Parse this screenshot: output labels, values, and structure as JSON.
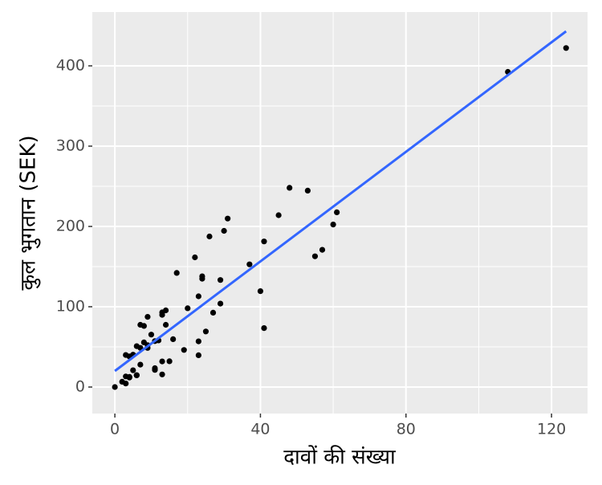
{
  "chart_data": {
    "type": "scatter",
    "x_label": "दावों की संख्या",
    "y_label": "कुल भुगतान (SEK)",
    "x": [
      108,
      19,
      13,
      124,
      40,
      57,
      23,
      14,
      45,
      10,
      5,
      48,
      11,
      23,
      7,
      2,
      24,
      6,
      3,
      23,
      6,
      9,
      9,
      3,
      29,
      7,
      4,
      20,
      7,
      4,
      0,
      25,
      6,
      5,
      22,
      11,
      61,
      12,
      4,
      16,
      13,
      60,
      41,
      37,
      55,
      41,
      11,
      27,
      8,
      3,
      17,
      13,
      13,
      15,
      8,
      29,
      30,
      24,
      9,
      31,
      14,
      53,
      26
    ],
    "y": [
      392.5,
      46.2,
      15.7,
      422.2,
      119.4,
      170.9,
      56.9,
      77.5,
      214,
      65.3,
      20.9,
      248.1,
      23.5,
      39.6,
      48.8,
      6.6,
      134.9,
      50.9,
      4.4,
      113,
      14.8,
      48.7,
      52.1,
      13.2,
      103.9,
      77.5,
      11.8,
      98.1,
      27.9,
      38.1,
      0,
      69.2,
      14.6,
      40.3,
      161.5,
      57.2,
      217.6,
      58.1,
      12.6,
      59.6,
      89.9,
      202.4,
      181.3,
      152.8,
      162.8,
      73.4,
      21.3,
      92.6,
      76.1,
      39.9,
      142.1,
      93,
      31.9,
      32.1,
      55.6,
      133.3,
      194.5,
      137.9,
      87.4,
      209.8,
      95.5,
      244.6,
      187.5
    ],
    "color": "#000000",
    "fit_line": {
      "x": [
        0,
        124
      ],
      "y": [
        20,
        443
      ],
      "color": "#3366ff"
    },
    "xlim": [
      -6.2,
      129.9
    ],
    "ylim": [
      -33,
      467
    ],
    "xticks": [
      0,
      40,
      80,
      120
    ],
    "yticks": [
      0,
      100,
      200,
      300,
      400
    ],
    "x_minor_ticks": [
      20,
      60,
      100
    ],
    "y_minor_ticks": [
      50,
      150,
      250,
      350
    ],
    "grid": true,
    "panel_color": "#ebebeb"
  }
}
